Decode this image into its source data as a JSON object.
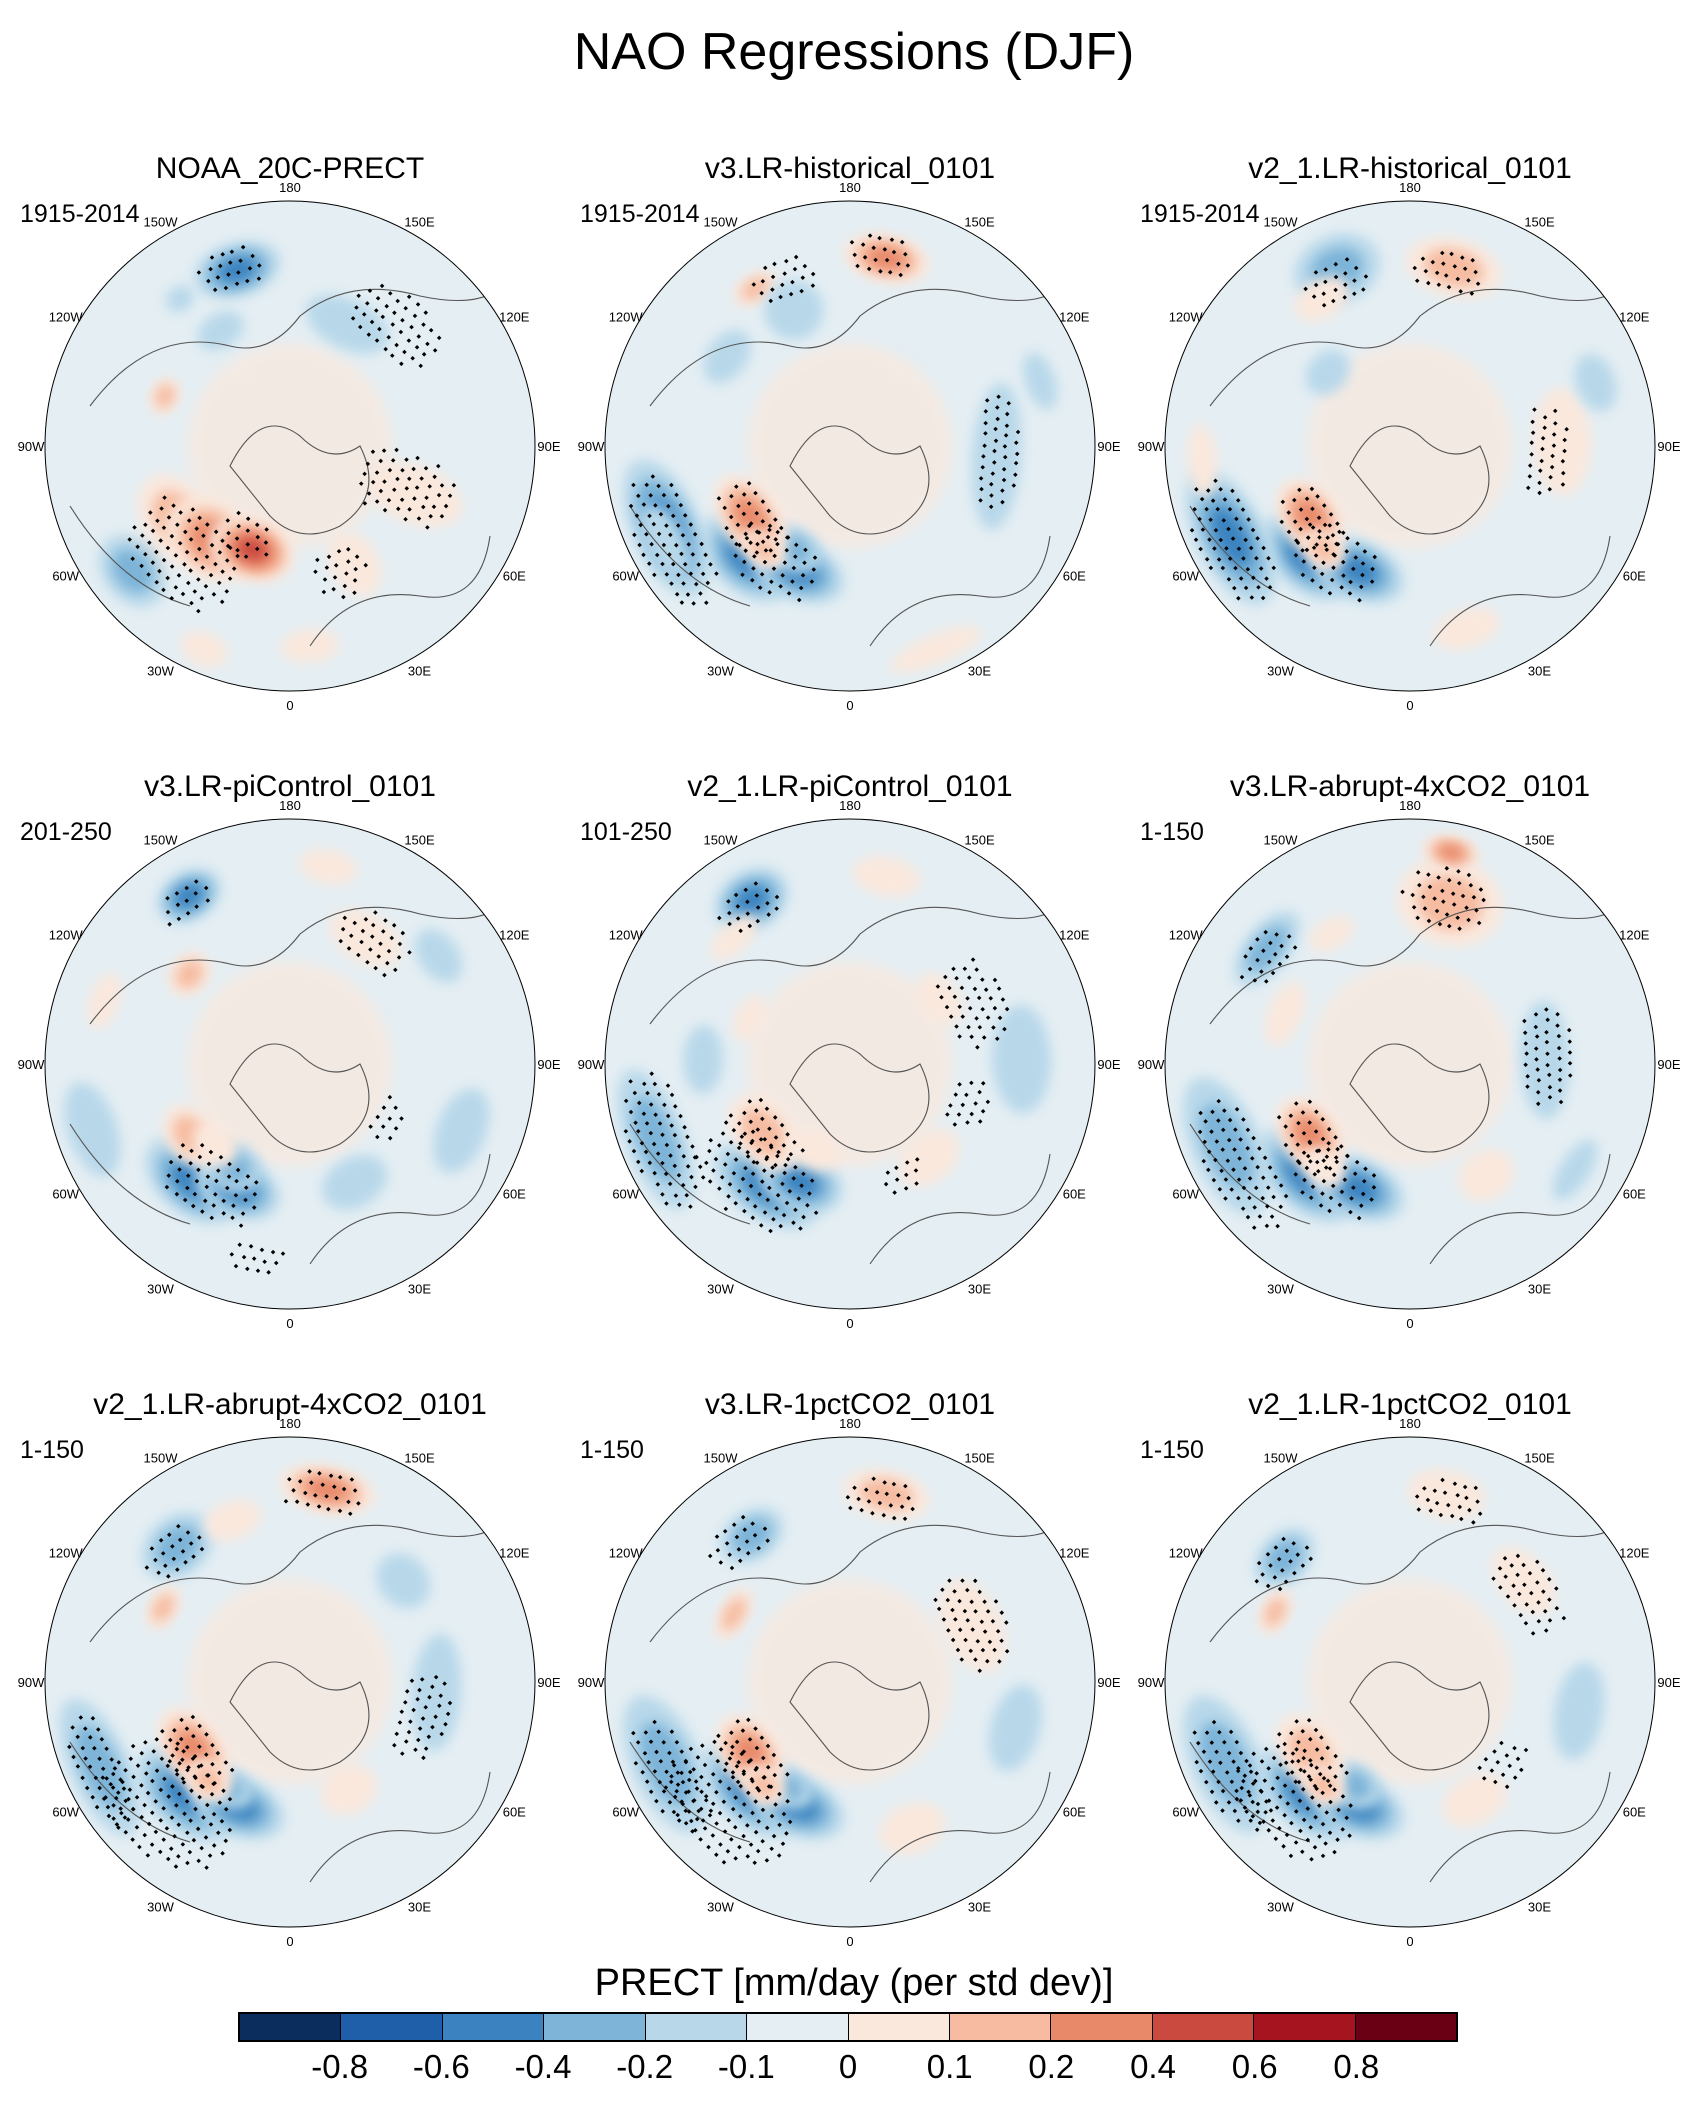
{
  "title": "NAO Regressions (DJF)",
  "colorbar": {
    "title": "PRECT [mm/day (per std dev)]",
    "ticks": [
      "-0.8",
      "-0.6",
      "-0.4",
      "-0.2",
      "-0.1",
      "0",
      "0.1",
      "0.2",
      "0.4",
      "0.6",
      "0.8"
    ],
    "colors": [
      "#0a2d5e",
      "#1f5ea8",
      "#3b83c0",
      "#7db4d8",
      "#b8d8ea",
      "#e4eef3",
      "#fae8dd",
      "#f6bba0",
      "#e8896a",
      "#ca4a40",
      "#a5141f",
      "#6a0013"
    ]
  },
  "lon_labels": [
    "180",
    "150E",
    "120E",
    "90E",
    "60E",
    "30E",
    "0",
    "30W",
    "60W",
    "90W",
    "120W",
    "150W"
  ],
  "panels": [
    {
      "title": "NOAA_20C-PRECT",
      "period": "1915-2014",
      "blobs": [
        [
          -1.0,
          0.55,
          0.2,
          0.14,
          2
        ],
        [
          -0.7,
          0.5,
          0.2,
          0.16,
          3
        ],
        [
          -0.35,
          0.45,
          0.18,
          0.13,
          4
        ],
        [
          -0.9,
          0.78,
          0.12,
          0.09,
          2
        ],
        [
          -0.4,
          0.9,
          0.1,
          0.07,
          1
        ],
        [
          0.1,
          0.82,
          0.12,
          0.07,
          1
        ],
        [
          -0.9,
          0.82,
          0.16,
          0.12,
          -2
        ],
        [
          1.2,
          0.55,
          0.12,
          0.2,
          1
        ],
        [
          0.5,
          0.55,
          0.1,
          0.14,
          1
        ],
        [
          2.7,
          0.55,
          0.18,
          0.1,
          -1
        ],
        [
          -2.6,
          0.55,
          0.1,
          0.07,
          -1
        ],
        [
          -2.85,
          0.75,
          0.18,
          0.11,
          -3
        ],
        [
          -1.95,
          0.55,
          0.08,
          0.06,
          2
        ],
        [
          -2.5,
          0.75,
          0.06,
          0.05,
          -1
        ]
      ],
      "dots": [
        [
          -2.85,
          0.75,
          0.14,
          0.1
        ],
        [
          1.2,
          0.5,
          0.15,
          0.22
        ],
        [
          -0.8,
          0.62,
          0.25,
          0.2
        ],
        [
          2.4,
          0.65,
          0.22,
          0.14
        ],
        [
          -0.5,
          0.4,
          0.12,
          0.1
        ],
        [
          0.35,
          0.55,
          0.12,
          0.12
        ]
      ]
    },
    {
      "title": "v3.LR-historical_0101",
      "period": "1915-2014",
      "blobs": [
        [
          -0.75,
          0.62,
          0.22,
          0.14,
          -3
        ],
        [
          -0.4,
          0.55,
          0.2,
          0.12,
          -3
        ],
        [
          -0.5,
          0.48,
          0.12,
          0.09,
          -2
        ],
        [
          -1.15,
          0.82,
          0.3,
          0.14,
          -3
        ],
        [
          -1.1,
          0.85,
          0.16,
          0.08,
          -1
        ],
        [
          -0.95,
          0.5,
          0.2,
          0.12,
          3
        ],
        [
          -0.7,
          0.55,
          0.1,
          0.06,
          2
        ],
        [
          -2.6,
          0.75,
          0.1,
          0.06,
          2
        ],
        [
          2.95,
          0.78,
          0.18,
          0.1,
          3
        ],
        [
          -2.75,
          0.6,
          0.12,
          0.12,
          -1
        ],
        [
          1.5,
          0.6,
          0.3,
          0.1,
          -1
        ],
        [
          -2.2,
          0.62,
          0.12,
          0.08,
          -1
        ],
        [
          0.4,
          0.9,
          0.2,
          0.06,
          1
        ],
        [
          1.9,
          0.82,
          0.12,
          0.06,
          -1
        ]
      ],
      "dots": [
        [
          -1.1,
          0.82,
          0.3,
          0.14
        ],
        [
          -0.6,
          0.55,
          0.2,
          0.14
        ],
        [
          -0.95,
          0.5,
          0.18,
          0.12
        ],
        [
          -2.8,
          0.72,
          0.14,
          0.1
        ],
        [
          2.95,
          0.78,
          0.14,
          0.1
        ],
        [
          1.5,
          0.6,
          0.25,
          0.1
        ]
      ]
    },
    {
      "title": "v2_1.LR-historical_0101",
      "period": "1915-2014",
      "blobs": [
        [
          -0.75,
          0.62,
          0.22,
          0.13,
          -3
        ],
        [
          -0.4,
          0.55,
          0.2,
          0.12,
          -3
        ],
        [
          -1.1,
          0.82,
          0.3,
          0.14,
          -3
        ],
        [
          -0.95,
          0.5,
          0.18,
          0.12,
          3
        ],
        [
          -0.7,
          0.55,
          0.1,
          0.07,
          2
        ],
        [
          2.9,
          0.75,
          0.2,
          0.12,
          2
        ],
        [
          -2.75,
          0.78,
          0.18,
          0.14,
          -2
        ],
        [
          -2.6,
          0.7,
          0.12,
          0.08,
          1
        ],
        [
          -2.3,
          0.45,
          0.1,
          0.08,
          -1
        ],
        [
          1.6,
          0.62,
          0.22,
          0.12,
          1
        ],
        [
          1.9,
          0.8,
          0.12,
          0.08,
          -1
        ],
        [
          0.3,
          0.78,
          0.14,
          0.08,
          1
        ],
        [
          -1.5,
          0.85,
          0.15,
          0.06,
          1
        ]
      ],
      "dots": [
        [
          -1.1,
          0.82,
          0.28,
          0.14
        ],
        [
          -0.6,
          0.55,
          0.2,
          0.14
        ],
        [
          -0.95,
          0.5,
          0.16,
          0.12
        ],
        [
          2.9,
          0.72,
          0.16,
          0.1
        ],
        [
          -2.75,
          0.72,
          0.14,
          0.1
        ],
        [
          1.5,
          0.55,
          0.2,
          0.1
        ]
      ]
    },
    {
      "title": "v3.LR-piControl_0101",
      "period": "201-250",
      "blobs": [
        [
          -0.7,
          0.62,
          0.22,
          0.14,
          -3
        ],
        [
          -0.4,
          0.55,
          0.18,
          0.12,
          -3
        ],
        [
          -0.5,
          0.48,
          0.12,
          0.1,
          -2
        ],
        [
          -0.95,
          0.5,
          0.14,
          0.1,
          2
        ],
        [
          -0.75,
          0.45,
          0.1,
          0.08,
          1
        ],
        [
          -2.6,
          0.8,
          0.14,
          0.1,
          -3
        ],
        [
          -2.3,
          0.55,
          0.1,
          0.08,
          2
        ],
        [
          2.95,
          0.82,
          0.12,
          0.07,
          1
        ],
        [
          2.6,
          0.6,
          0.16,
          0.1,
          1
        ],
        [
          2.2,
          0.75,
          0.12,
          0.08,
          -1
        ],
        [
          -1.25,
          0.85,
          0.2,
          0.1,
          -1
        ],
        [
          1.2,
          0.75,
          0.18,
          0.1,
          -1
        ],
        [
          0.5,
          0.55,
          0.14,
          0.1,
          -1
        ],
        [
          -1.9,
          0.8,
          0.12,
          0.06,
          1
        ]
      ],
      "dots": [
        [
          -0.6,
          0.58,
          0.22,
          0.15
        ],
        [
          -2.6,
          0.78,
          0.12,
          0.08
        ],
        [
          2.5,
          0.6,
          0.16,
          0.12
        ],
        [
          1.0,
          0.45,
          0.1,
          0.08
        ],
        [
          -0.2,
          0.8,
          0.12,
          0.08
        ]
      ]
    },
    {
      "title": "v2_1.LR-piControl_0101",
      "period": "101-250",
      "blobs": [
        [
          -0.6,
          0.6,
          0.24,
          0.14,
          -3
        ],
        [
          -0.4,
          0.52,
          0.18,
          0.12,
          -3
        ],
        [
          -1.2,
          0.85,
          0.3,
          0.12,
          -2
        ],
        [
          -0.9,
          0.45,
          0.18,
          0.12,
          2
        ],
        [
          -0.4,
          0.38,
          0.12,
          0.08,
          1
        ],
        [
          -2.6,
          0.78,
          0.16,
          0.12,
          -3
        ],
        [
          2.95,
          0.78,
          0.14,
          0.08,
          1
        ],
        [
          -2.4,
          0.7,
          0.12,
          0.06,
          1
        ],
        [
          2.2,
          0.45,
          0.12,
          0.08,
          1
        ],
        [
          1.6,
          0.7,
          0.22,
          0.12,
          -1
        ],
        [
          -1.6,
          0.6,
          0.14,
          0.08,
          -1
        ],
        [
          0.7,
          0.5,
          0.14,
          0.1,
          1
        ],
        [
          -2.0,
          0.45,
          0.1,
          0.06,
          1
        ]
      ],
      "dots": [
        [
          -0.7,
          0.6,
          0.28,
          0.18
        ],
        [
          -1.2,
          0.82,
          0.3,
          0.14
        ],
        [
          -0.9,
          0.45,
          0.18,
          0.12
        ],
        [
          -2.6,
          0.75,
          0.14,
          0.1
        ],
        [
          2.0,
          0.55,
          0.2,
          0.14
        ],
        [
          1.2,
          0.5,
          0.12,
          0.1
        ],
        [
          0.4,
          0.5,
          0.1,
          0.08
        ]
      ]
    },
    {
      "title": "v3.LR-abrupt-4xCO2_0101",
      "period": "1-150",
      "blobs": [
        [
          -0.75,
          0.62,
          0.24,
          0.14,
          -3
        ],
        [
          -0.4,
          0.55,
          0.2,
          0.12,
          -3
        ],
        [
          -1.15,
          0.82,
          0.3,
          0.14,
          -2
        ],
        [
          -0.95,
          0.5,
          0.18,
          0.12,
          3
        ],
        [
          -0.7,
          0.55,
          0.1,
          0.07,
          1
        ],
        [
          2.9,
          0.68,
          0.22,
          0.18,
          2
        ],
        [
          2.95,
          0.88,
          0.12,
          0.07,
          3
        ],
        [
          -2.25,
          0.75,
          0.18,
          0.09,
          -2
        ],
        [
          -2.6,
          0.62,
          0.1,
          0.06,
          1
        ],
        [
          1.0,
          0.8,
          0.14,
          0.06,
          -1
        ],
        [
          1.6,
          0.55,
          0.24,
          0.1,
          -1
        ],
        [
          -1.95,
          0.55,
          0.14,
          0.07,
          1
        ],
        [
          0.6,
          0.55,
          0.12,
          0.1,
          1
        ]
      ],
      "dots": [
        [
          -1.05,
          0.8,
          0.3,
          0.14
        ],
        [
          -0.6,
          0.55,
          0.2,
          0.14
        ],
        [
          -0.95,
          0.5,
          0.18,
          0.12
        ],
        [
          2.9,
          0.68,
          0.18,
          0.14
        ],
        [
          -2.25,
          0.72,
          0.14,
          0.1
        ],
        [
          1.6,
          0.55,
          0.22,
          0.12
        ]
      ]
    },
    {
      "title": "v2_1.LR-abrupt-4xCO2_0101",
      "period": "1-150",
      "blobs": [
        [
          -0.75,
          0.62,
          0.24,
          0.15,
          -3
        ],
        [
          -0.4,
          0.55,
          0.2,
          0.12,
          -3
        ],
        [
          -0.55,
          0.5,
          0.12,
          0.08,
          -2
        ],
        [
          -1.15,
          0.85,
          0.3,
          0.12,
          -2
        ],
        [
          -0.95,
          0.48,
          0.2,
          0.12,
          3
        ],
        [
          -0.7,
          0.52,
          0.1,
          0.08,
          2
        ],
        [
          2.95,
          0.8,
          0.2,
          0.1,
          3
        ],
        [
          -2.45,
          0.72,
          0.16,
          0.12,
          -2
        ],
        [
          -2.8,
          0.7,
          0.12,
          0.08,
          1
        ],
        [
          -2.1,
          0.6,
          0.1,
          0.06,
          2
        ],
        [
          2.3,
          0.62,
          0.12,
          0.1,
          -1
        ],
        [
          1.5,
          0.6,
          0.24,
          0.1,
          -1
        ],
        [
          0.5,
          0.5,
          0.12,
          0.1,
          1
        ]
      ],
      "dots": [
        [
          -0.8,
          0.7,
          0.3,
          0.24
        ],
        [
          -1.15,
          0.85,
          0.26,
          0.1
        ],
        [
          -0.95,
          0.48,
          0.18,
          0.12
        ],
        [
          2.95,
          0.78,
          0.18,
          0.1
        ],
        [
          -2.45,
          0.7,
          0.14,
          0.1
        ],
        [
          1.3,
          0.55,
          0.2,
          0.12
        ]
      ]
    },
    {
      "title": "v3.LR-1pctCO2_0101",
      "period": "1-150",
      "blobs": [
        [
          -0.75,
          0.6,
          0.24,
          0.14,
          -3
        ],
        [
          -0.4,
          0.55,
          0.2,
          0.12,
          -3
        ],
        [
          -0.55,
          0.5,
          0.12,
          0.08,
          -2
        ],
        [
          -1.15,
          0.82,
          0.3,
          0.14,
          -2
        ],
        [
          -0.95,
          0.5,
          0.18,
          0.12,
          3
        ],
        [
          -0.7,
          0.55,
          0.1,
          0.07,
          2
        ],
        [
          2.95,
          0.78,
          0.18,
          0.1,
          2
        ],
        [
          -2.55,
          0.72,
          0.14,
          0.1,
          -2
        ],
        [
          -2.1,
          0.55,
          0.12,
          0.06,
          2
        ],
        [
          2.0,
          0.55,
          0.2,
          0.12,
          1
        ],
        [
          1.3,
          0.7,
          0.18,
          0.1,
          -1
        ],
        [
          0.4,
          0.65,
          0.14,
          0.1,
          1
        ]
      ],
      "dots": [
        [
          -0.8,
          0.7,
          0.3,
          0.22
        ],
        [
          -1.1,
          0.82,
          0.26,
          0.12
        ],
        [
          -0.95,
          0.5,
          0.18,
          0.12
        ],
        [
          2.95,
          0.75,
          0.16,
          0.1
        ],
        [
          -2.5,
          0.72,
          0.14,
          0.1
        ],
        [
          2.0,
          0.55,
          0.22,
          0.14
        ]
      ]
    },
    {
      "title": "v2_1.LR-1pctCO2_0101",
      "period": "1-150",
      "blobs": [
        [
          -0.75,
          0.62,
          0.24,
          0.14,
          -3
        ],
        [
          -0.4,
          0.55,
          0.2,
          0.12,
          -3
        ],
        [
          -0.5,
          0.48,
          0.12,
          0.09,
          -2
        ],
        [
          -1.15,
          0.82,
          0.3,
          0.14,
          -2
        ],
        [
          -0.95,
          0.5,
          0.18,
          0.12,
          2
        ],
        [
          -0.7,
          0.55,
          0.1,
          0.07,
          2
        ],
        [
          2.95,
          0.78,
          0.16,
          0.1,
          1
        ],
        [
          -2.35,
          0.72,
          0.14,
          0.1,
          -2
        ],
        [
          -2.05,
          0.62,
          0.1,
          0.06,
          2
        ],
        [
          2.3,
          0.62,
          0.16,
          0.1,
          1
        ],
        [
          1.4,
          0.7,
          0.2,
          0.1,
          -1
        ],
        [
          0.5,
          0.55,
          0.14,
          0.1,
          1
        ]
      ],
      "dots": [
        [
          -0.8,
          0.68,
          0.28,
          0.2
        ],
        [
          -1.1,
          0.82,
          0.26,
          0.12
        ],
        [
          -0.95,
          0.5,
          0.18,
          0.12
        ],
        [
          2.9,
          0.75,
          0.16,
          0.1
        ],
        [
          -2.35,
          0.7,
          0.14,
          0.1
        ],
        [
          2.2,
          0.6,
          0.2,
          0.12
        ],
        [
          0.8,
          0.5,
          0.12,
          0.1
        ]
      ]
    }
  ]
}
